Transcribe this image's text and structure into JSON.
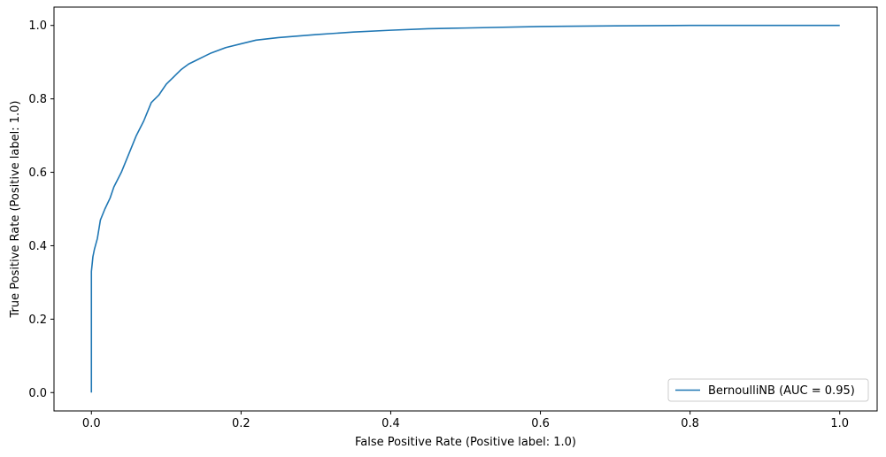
{
  "chart_data": {
    "type": "line",
    "title": "",
    "xlabel": "False Positive Rate (Positive label: 1.0)",
    "ylabel": "True Positive Rate (Positive label: 1.0)",
    "xlim": [
      -0.05,
      1.05
    ],
    "ylim": [
      -0.05,
      1.05
    ],
    "xticks": [
      0.0,
      0.2,
      0.4,
      0.6,
      0.8,
      1.0
    ],
    "yticks": [
      0.0,
      0.2,
      0.4,
      0.6,
      0.8,
      1.0
    ],
    "xtick_labels": [
      "0.0",
      "0.2",
      "0.4",
      "0.6",
      "0.8",
      "1.0"
    ],
    "ytick_labels": [
      "0.0",
      "0.2",
      "0.4",
      "0.6",
      "0.8",
      "1.0"
    ],
    "grid": false,
    "legend_position": "lower-right",
    "series": [
      {
        "name": "BernoulliNB (AUC = 0.95)",
        "color": "#1f77b4",
        "x": [
          0.0,
          0.0,
          0.0,
          0.002,
          0.004,
          0.008,
          0.012,
          0.018,
          0.025,
          0.03,
          0.04,
          0.05,
          0.06,
          0.07,
          0.08,
          0.09,
          0.1,
          0.11,
          0.12,
          0.13,
          0.14,
          0.15,
          0.16,
          0.18,
          0.2,
          0.22,
          0.25,
          0.3,
          0.35,
          0.4,
          0.45,
          0.5,
          0.6,
          0.7,
          0.8,
          0.9,
          1.0
        ],
        "y": [
          0.0,
          0.22,
          0.33,
          0.37,
          0.39,
          0.42,
          0.47,
          0.5,
          0.53,
          0.56,
          0.6,
          0.65,
          0.7,
          0.74,
          0.79,
          0.81,
          0.84,
          0.86,
          0.88,
          0.895,
          0.905,
          0.915,
          0.925,
          0.94,
          0.95,
          0.96,
          0.967,
          0.975,
          0.982,
          0.987,
          0.991,
          0.993,
          0.997,
          0.999,
          1.0,
          1.0,
          1.0
        ]
      }
    ]
  }
}
